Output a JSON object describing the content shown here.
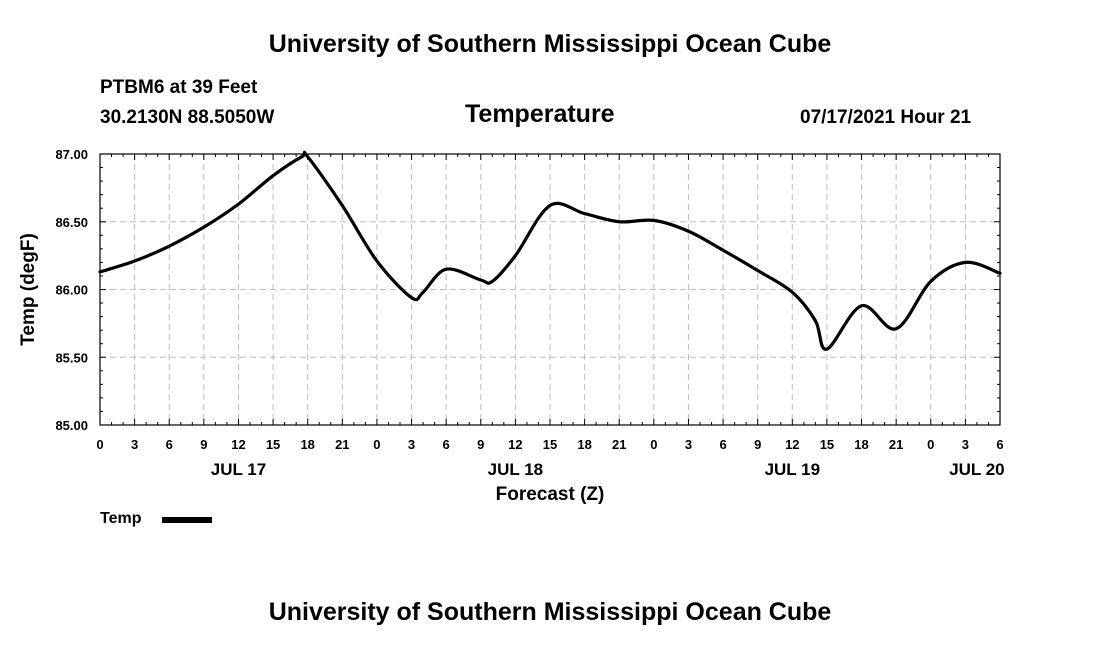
{
  "header": {
    "title_top": "University of Southern Mississippi Ocean Cube",
    "title_bottom": "University of Southern Mississippi Ocean Cube",
    "station_line": "PTBM6 at 39 Feet",
    "coords_line": "30.2130N  88.5050W",
    "datetime_line": "07/17/2021 Hour 21"
  },
  "legend": {
    "label": "Temp",
    "color": "#000000"
  },
  "chart_data": {
    "type": "line",
    "title": "Temperature",
    "xlabel": "Forecast (Z)",
    "ylabel": "Temp (degF)",
    "ylim": [
      85.0,
      87.0
    ],
    "xlim": [
      0,
      78
    ],
    "y_ticks": [
      "85.00",
      "85.50",
      "86.00",
      "86.50",
      "87.00"
    ],
    "y_tick_values": [
      85.0,
      85.5,
      86.0,
      86.5,
      87.0
    ],
    "x_tick_hours": [
      0,
      3,
      6,
      9,
      12,
      15,
      18,
      21,
      24,
      27,
      30,
      33,
      36,
      39,
      42,
      45,
      48,
      51,
      54,
      57,
      60,
      63,
      66,
      69,
      72,
      75,
      78
    ],
    "x_tick_labels": [
      "0",
      "3",
      "6",
      "9",
      "12",
      "15",
      "18",
      "21",
      "0",
      "3",
      "6",
      "9",
      "12",
      "15",
      "18",
      "21",
      "0",
      "3",
      "6",
      "9",
      "12",
      "15",
      "18",
      "21",
      "0",
      "3",
      "6"
    ],
    "date_labels": [
      {
        "hour": 12,
        "label": "JUL 17"
      },
      {
        "hour": 36,
        "label": "JUL 18"
      },
      {
        "hour": 60,
        "label": "JUL 19"
      },
      {
        "hour": 76,
        "label": "JUL 20"
      }
    ],
    "grid": true,
    "series": [
      {
        "name": "Temp",
        "color": "#000000",
        "x": [
          0,
          3,
          6,
          9,
          12,
          15,
          17.5,
          18,
          21,
          24,
          27,
          28,
          30,
          33,
          34,
          36,
          39,
          42,
          45,
          48,
          51,
          54,
          57,
          60,
          62,
          63,
          66,
          69,
          72,
          75,
          78
        ],
        "values": [
          86.13,
          86.21,
          86.32,
          86.46,
          86.63,
          86.84,
          86.98,
          86.98,
          86.62,
          86.21,
          85.94,
          85.98,
          86.15,
          86.07,
          86.06,
          86.25,
          86.62,
          86.56,
          86.5,
          86.51,
          86.43,
          86.29,
          86.14,
          85.98,
          85.77,
          85.56,
          85.88,
          85.71,
          86.06,
          86.2,
          86.12
        ]
      }
    ]
  }
}
